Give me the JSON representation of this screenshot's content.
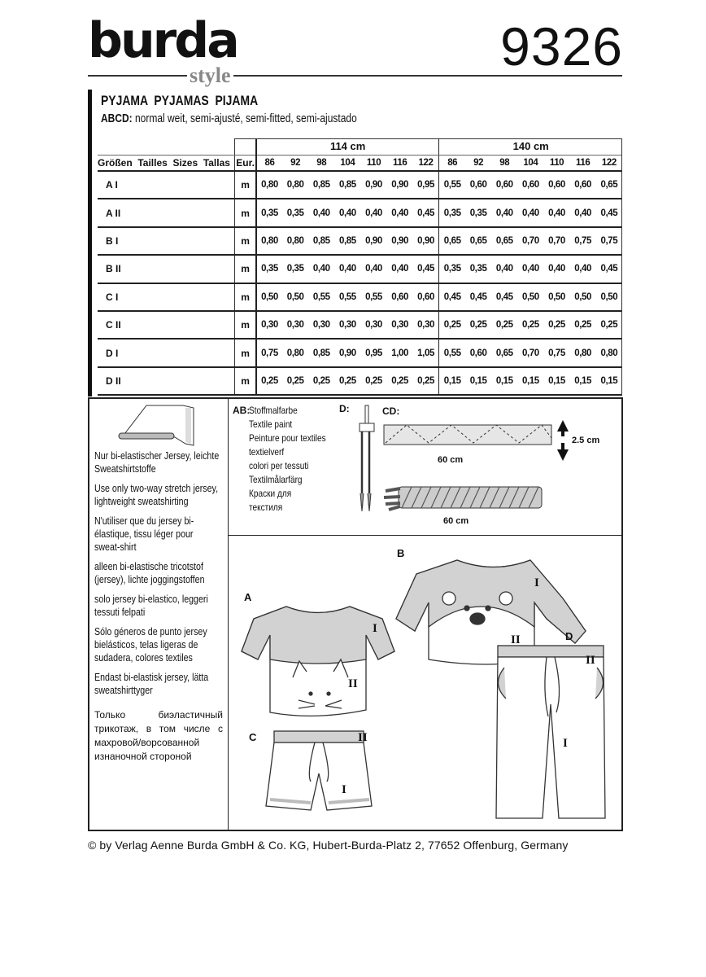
{
  "header": {
    "brand": "burda",
    "brand_sub": "style",
    "pattern_number": "9326"
  },
  "title": "PYJAMA  PYJAMAS  PIJAMA",
  "subtitle": {
    "prefix": "ABCD:",
    "text": " normal weit, semi-ajusté, semi-fitted, semi-ajustado"
  },
  "table": {
    "size_label": "Größen  Tailles  Sizes  Tallas",
    "eur_label": "Eur.",
    "widths": [
      "114 cm",
      "140 cm"
    ],
    "sizes": [
      "86",
      "92",
      "98",
      "104",
      "110",
      "116",
      "122"
    ],
    "rows": [
      {
        "label": "A I",
        "unit": "m",
        "w114": [
          "0,80",
          "0,80",
          "0,85",
          "0,85",
          "0,90",
          "0,90",
          "0,95"
        ],
        "w140": [
          "0,55",
          "0,60",
          "0,60",
          "0,60",
          "0,60",
          "0,60",
          "0,65"
        ]
      },
      {
        "label": "A II",
        "unit": "m",
        "w114": [
          "0,35",
          "0,35",
          "0,40",
          "0,40",
          "0,40",
          "0,40",
          "0,45"
        ],
        "w140": [
          "0,35",
          "0,35",
          "0,40",
          "0,40",
          "0,40",
          "0,40",
          "0,45"
        ]
      },
      {
        "label": "B I",
        "unit": "m",
        "w114": [
          "0,80",
          "0,80",
          "0,85",
          "0,85",
          "0,90",
          "0,90",
          "0,90"
        ],
        "w140": [
          "0,65",
          "0,65",
          "0,65",
          "0,70",
          "0,70",
          "0,75",
          "0,75"
        ]
      },
      {
        "label": "B II",
        "unit": "m",
        "w114": [
          "0,35",
          "0,35",
          "0,40",
          "0,40",
          "0,40",
          "0,40",
          "0,45"
        ],
        "w140": [
          "0,35",
          "0,35",
          "0,40",
          "0,40",
          "0,40",
          "0,40",
          "0,45"
        ]
      },
      {
        "label": "C I",
        "unit": "m",
        "w114": [
          "0,50",
          "0,50",
          "0,55",
          "0,55",
          "0,55",
          "0,60",
          "0,60"
        ],
        "w140": [
          "0,45",
          "0,45",
          "0,45",
          "0,50",
          "0,50",
          "0,50",
          "0,50"
        ]
      },
      {
        "label": "C II",
        "unit": "m",
        "w114": [
          "0,30",
          "0,30",
          "0,30",
          "0,30",
          "0,30",
          "0,30",
          "0,30"
        ],
        "w140": [
          "0,25",
          "0,25",
          "0,25",
          "0,25",
          "0,25",
          "0,25",
          "0,25"
        ]
      },
      {
        "label": "D I",
        "unit": "m",
        "w114": [
          "0,75",
          "0,80",
          "0,85",
          "0,90",
          "0,95",
          "1,00",
          "1,05"
        ],
        "w140": [
          "0,55",
          "0,60",
          "0,65",
          "0,70",
          "0,75",
          "0,80",
          "0,80"
        ]
      },
      {
        "label": "D II",
        "unit": "m",
        "w114": [
          "0,25",
          "0,25",
          "0,25",
          "0,25",
          "0,25",
          "0,25",
          "0,25"
        ],
        "w140": [
          "0,15",
          "0,15",
          "0,15",
          "0,15",
          "0,15",
          "0,15",
          "0,15"
        ]
      }
    ]
  },
  "fabrics": [
    "Nur bi-elastischer Jersey, leichte Sweatshirtstoffe",
    "Use only two-way stretch jersey, lightweight sweatshirting",
    "N'utiliser que du jersey bi-élastique, tissu léger pour sweat-shirt",
    "alleen bi-elastische tricotstof (jersey), lichte joggingstoffen",
    "solo jersey bi-elastico, leggeri tessuti felpati",
    "Sólo géneros de punto jersey bielásticos, telas ligeras de sudadera, colores textiles",
    "Endast bi-elastisk jersey, lätta sweatshirttyger",
    "Только биэластичный трикотаж, в том числе с махровой/ворсованной изнаночной стороной"
  ],
  "notions": {
    "ab_label": "AB:",
    "ab_items": [
      "Stoffmalfarbe",
      "Textile paint",
      "Peinture pour textiles",
      "textielverf",
      "colori per tessuti",
      "Textilmålarfärg",
      "Краски для",
      "текстиля"
    ],
    "d_label": "D:",
    "cd_label": "CD:",
    "tape_length": "60 cm",
    "tape_width": "2.5 cm",
    "cord_length": "60 cm"
  },
  "views": {
    "a": "A",
    "b": "B",
    "c": "C",
    "d": "D",
    "piece_i": "I",
    "piece_ii": "II"
  },
  "footer": "© by Verlag Aenne Burda GmbH & Co. KG, Hubert-Burda-Platz 2, 77652 Offenburg, Germany"
}
